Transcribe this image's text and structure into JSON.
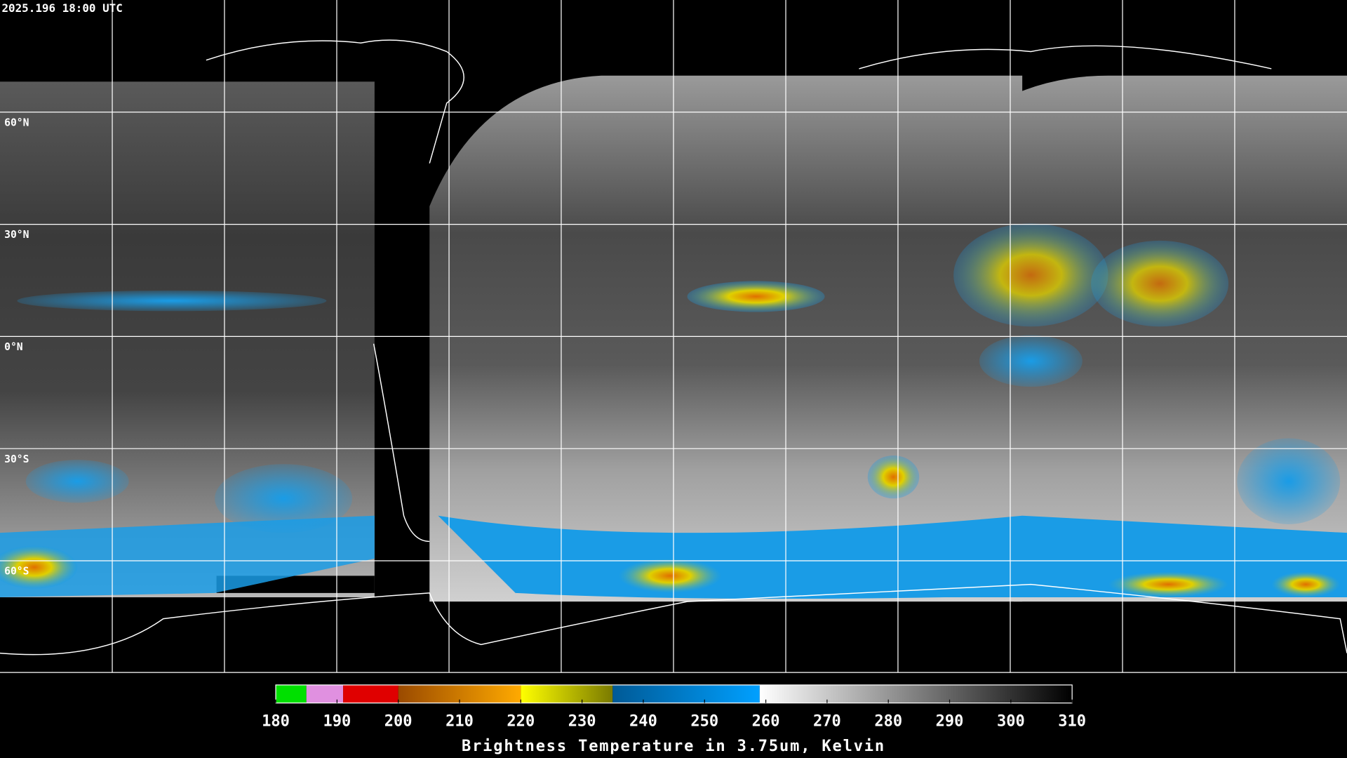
{
  "header": {
    "timestamp": "2025.196 18:00 UTC"
  },
  "lat_labels": [
    "60°N",
    "30°N",
    "0°N",
    "30°S",
    "60°S"
  ],
  "colorbar": {
    "title": "Brightness Temperature in 3.75um, Kelvin",
    "range": [
      180,
      310
    ],
    "ticks": [
      180,
      190,
      200,
      210,
      220,
      230,
      240,
      250,
      260,
      270,
      280,
      290,
      300,
      310
    ],
    "segments": [
      {
        "from": 180,
        "to": 185,
        "colors": [
          "#00e000",
          "#00e000"
        ]
      },
      {
        "from": 185,
        "to": 191,
        "colors": [
          "#e090e0",
          "#e090e0"
        ]
      },
      {
        "from": 191,
        "to": 200,
        "colors": [
          "#e00000",
          "#e00000"
        ]
      },
      {
        "from": 200,
        "to": 220,
        "colors": [
          "#9a4a00",
          "#ffaa00"
        ]
      },
      {
        "from": 220,
        "to": 235,
        "colors": [
          "#ffff00",
          "#7a7a00"
        ]
      },
      {
        "from": 235,
        "to": 259,
        "colors": [
          "#005a96",
          "#00a0ff"
        ]
      },
      {
        "from": 259,
        "to": 310,
        "colors": [
          "#ffffff",
          "#000000"
        ]
      }
    ]
  }
}
